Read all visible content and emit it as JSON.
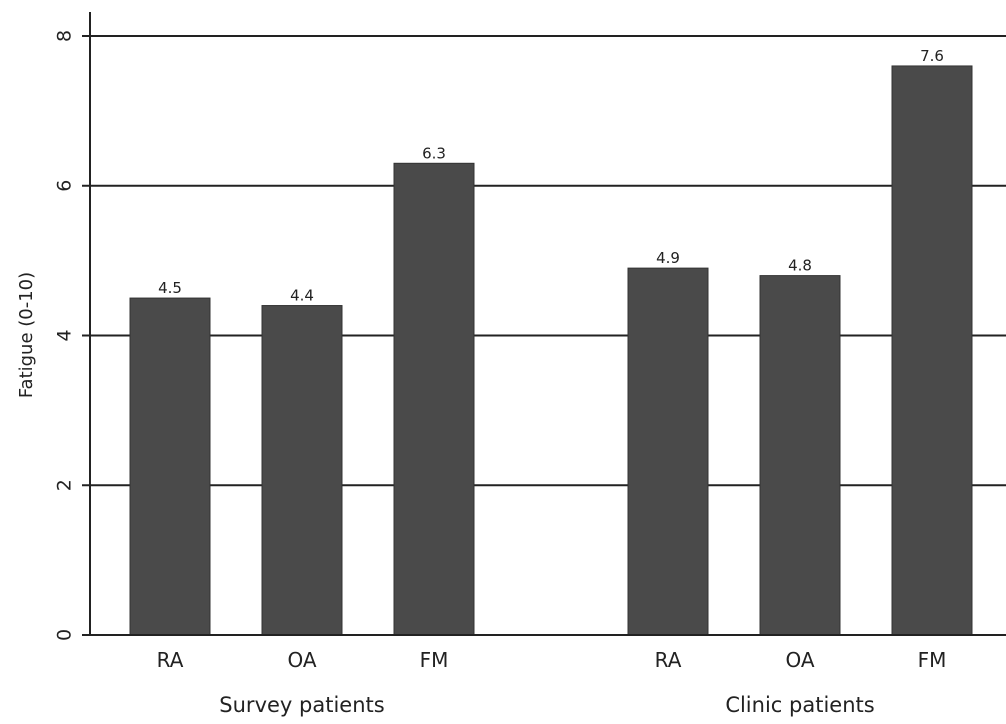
{
  "chart_data": {
    "type": "bar",
    "ylabel": "Fatigue (0-10)",
    "ylim": [
      0,
      8
    ],
    "yticks": [
      "0",
      "2",
      "4",
      "6",
      "8"
    ],
    "grid": true,
    "bar_color": "#4a4a4a",
    "groups": [
      {
        "name": "Survey patients",
        "categories": [
          "RA",
          "OA",
          "FM"
        ],
        "values": [
          4.5,
          4.4,
          6.3
        ],
        "labels": [
          "4.5",
          "4.4",
          "6.3"
        ]
      },
      {
        "name": "Clinic patients",
        "categories": [
          "RA",
          "OA",
          "FM"
        ],
        "values": [
          4.9,
          4.8,
          7.6
        ],
        "labels": [
          "4.9",
          "4.8",
          "7.6"
        ]
      }
    ]
  }
}
